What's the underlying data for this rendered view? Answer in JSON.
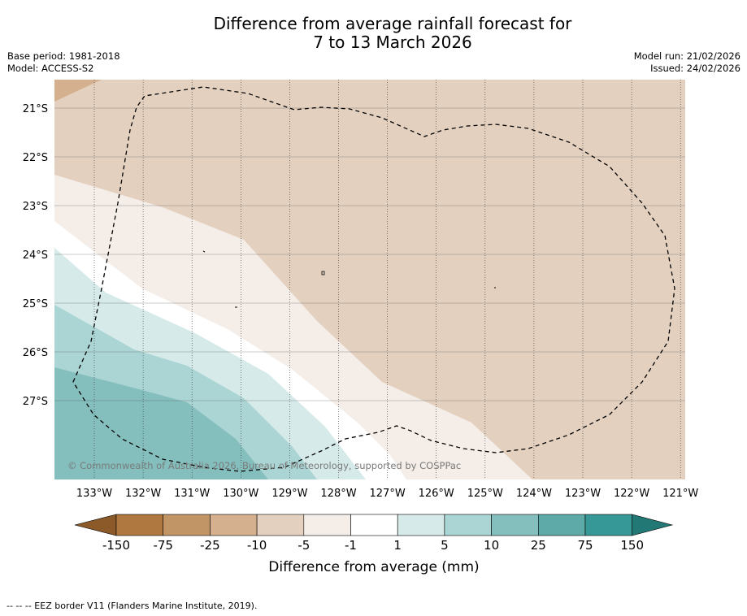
{
  "title": {
    "line1": "Difference from average rainfall forecast for",
    "line2": "7 to 13 March 2026"
  },
  "info_left": {
    "base_period": "Base period: 1981-2018",
    "model": "Model: ACCESS-S2"
  },
  "info_right": {
    "model_run": "Model run: 21/02/2026",
    "issued": "Issued: 24/02/2026"
  },
  "map": {
    "lat_labels": [
      "21°S",
      "22°S",
      "23°S",
      "24°S",
      "25°S",
      "26°S",
      "27°S"
    ],
    "lon_labels": [
      "133°W",
      "132°W",
      "131°W",
      "130°W",
      "129°W",
      "128°W",
      "127°W",
      "126°W",
      "125°W",
      "124°W",
      "123°W",
      "122°W",
      "121°W"
    ],
    "copyright": "© Commonwealth of Australia 2026, Bureau of Meteorology, supported by COSPPac"
  },
  "colorbar": {
    "ticks": [
      "-150",
      "-75",
      "-25",
      "-10",
      "-5",
      "-1",
      "1",
      "5",
      "10",
      "25",
      "75",
      "150"
    ],
    "colors": [
      "#ae7840",
      "#c29567",
      "#d4b08f",
      "#e3d0bf",
      "#f4ede8",
      "#ffffff",
      "#d5eae9",
      "#aad5d4",
      "#84bfbe",
      "#5eaaa9",
      "#369997"
    ],
    "extend_low_color": "#8c5a29",
    "extend_high_color": "#227875",
    "label": "Difference from average (mm)"
  },
  "footnote": "--  --  -- EEZ border V11 (Flanders Marine Institute, 2019)."
}
